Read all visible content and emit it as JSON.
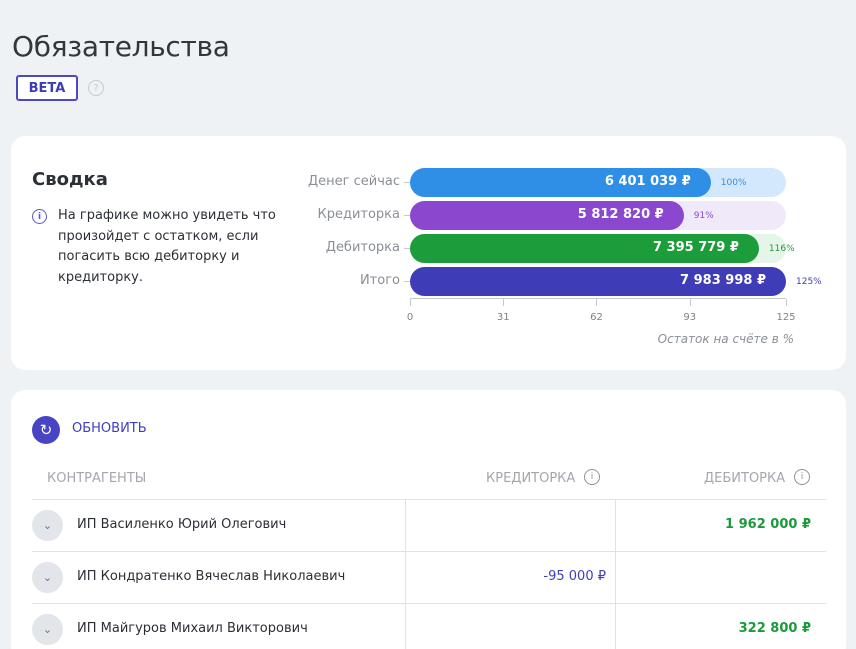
{
  "page": {
    "title": "Обязательства",
    "badge": "BETA",
    "help_icon": "question-circle-icon"
  },
  "summary": {
    "title": "Сводка",
    "info_icon": "info-icon",
    "description": "На графике можно увидеть что произойдет с остатком, если погасить всю дебиторку и кредиторку."
  },
  "chart_data": {
    "type": "bar",
    "orientation": "horizontal",
    "categories": [
      "Денег сейчас",
      "Кредиторка",
      "Дебиторка",
      "Итого"
    ],
    "values": [
      100,
      91,
      116,
      125
    ],
    "value_labels": [
      "6 401 039 ₽",
      "5 812 820 ₽",
      "7 395 779 ₽",
      "7 983 998 ₽"
    ],
    "percent_labels": [
      "100%",
      "91%",
      "116%",
      "125%"
    ],
    "colors": [
      "#2f8fe6",
      "#8a48cf",
      "#1c9c3b",
      "#3f3cb8"
    ],
    "track_colors": [
      "#d3e8fc",
      "#f0e9fa",
      "#e6f5e9",
      "#ffffff"
    ],
    "pct_colors": [
      "#2f8fe6",
      "#8a48cf",
      "#1c9c3b",
      "#3f3cb8"
    ],
    "xlabel": "Остаток на счёте в %",
    "xticks": [
      0,
      31,
      62,
      93,
      125
    ],
    "xlim": [
      0,
      125
    ],
    "track_max": 125
  },
  "list": {
    "refresh_label": "ОБНОВИТЬ",
    "refresh_icon": "refresh-icon",
    "columns": {
      "counterparty": "КОНТРАГЕНТЫ",
      "credit": "КРЕДИТОРКА",
      "debit": "ДЕБИТОРКА"
    },
    "rows": [
      {
        "name": "ИП Василенко Юрий Олегович",
        "credit": "",
        "debit": "1 962 000 ₽"
      },
      {
        "name": "ИП Кондратенко Вячеслав Николаевич",
        "credit": "-95 000 ₽",
        "debit": ""
      },
      {
        "name": "ИП Майгуров Михаил Викторович",
        "credit": "",
        "debit": "322 800 ₽"
      }
    ]
  }
}
